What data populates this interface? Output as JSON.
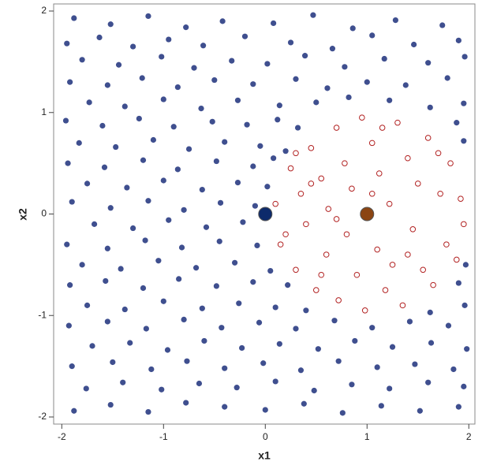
{
  "chart_data": {
    "type": "scatter",
    "x_label": "x1",
    "y_label": "x2",
    "xlim": [
      -2.08,
      2.06
    ],
    "ylim": [
      -2.07,
      2.07
    ],
    "xticks": [
      -2,
      -1,
      0,
      1,
      2
    ],
    "yticks": [
      -2,
      -1,
      0,
      1,
      2
    ],
    "series": [
      {
        "color": "#3f4f8f",
        "marker": "filled",
        "x": [
          -1.88,
          -1.52,
          -1.15,
          -0.78,
          -0.42,
          0.08,
          0.47,
          0.86,
          1.28,
          1.74,
          -1.95,
          -1.63,
          -1.3,
          -0.95,
          -0.61,
          -0.2,
          0.25,
          0.66,
          1.05,
          1.46,
          1.9,
          -1.8,
          -1.44,
          -1.02,
          -0.7,
          -0.33,
          0.02,
          0.39,
          0.78,
          1.17,
          1.6,
          1.96,
          -1.92,
          -1.55,
          -1.21,
          -0.86,
          -0.5,
          -0.12,
          0.3,
          0.61,
          1.0,
          1.38,
          1.79,
          -1.73,
          -1.38,
          -1.0,
          -0.63,
          -0.27,
          0.14,
          0.5,
          0.82,
          1.22,
          1.62,
          1.95,
          -1.96,
          -1.6,
          -1.24,
          -0.9,
          -0.52,
          -0.18,
          0.12,
          0.32,
          1.88,
          -1.83,
          -1.47,
          -1.1,
          -0.75,
          -0.4,
          -0.05,
          0.2,
          1.95,
          -1.94,
          -1.58,
          -1.2,
          -0.86,
          -0.48,
          -0.12,
          0.08,
          -1.75,
          -1.36,
          -1.0,
          -0.62,
          -0.27,
          0.02,
          -1.9,
          -1.52,
          -1.15,
          -0.8,
          -0.44,
          -0.1,
          -1.68,
          -1.3,
          -0.95,
          -0.58,
          -0.22,
          -1.95,
          -1.55,
          -1.18,
          -0.82,
          -0.45,
          -0.08,
          -1.8,
          -1.42,
          -1.05,
          -0.68,
          -0.3,
          0.05,
          1.97,
          -1.92,
          -1.57,
          -1.2,
          -0.85,
          -0.48,
          -0.12,
          0.22,
          1.9,
          -1.75,
          -1.38,
          -1.0,
          -0.62,
          -0.26,
          0.1,
          0.4,
          1.62,
          1.96,
          -1.93,
          -1.55,
          -1.17,
          -0.8,
          -0.43,
          -0.06,
          0.3,
          0.68,
          1.05,
          1.42,
          1.8,
          -1.7,
          -1.33,
          -0.96,
          -0.6,
          -0.23,
          0.14,
          0.52,
          0.88,
          1.25,
          1.63,
          1.98,
          -1.9,
          -1.5,
          -1.12,
          -0.77,
          -0.4,
          -0.02,
          0.35,
          0.72,
          1.1,
          1.47,
          1.85,
          -1.76,
          -1.4,
          -1.02,
          -0.65,
          -0.28,
          0.1,
          0.48,
          0.85,
          1.22,
          1.6,
          1.95,
          -1.88,
          -1.52,
          -1.15,
          -0.78,
          -0.4,
          0.0,
          0.38,
          0.76,
          1.14,
          1.52,
          1.9
        ],
        "y": [
          1.93,
          1.87,
          1.95,
          1.84,
          1.9,
          1.88,
          1.96,
          1.83,
          1.91,
          1.86,
          1.68,
          1.74,
          1.65,
          1.72,
          1.66,
          1.75,
          1.69,
          1.63,
          1.76,
          1.67,
          1.71,
          1.52,
          1.47,
          1.55,
          1.44,
          1.51,
          1.48,
          1.56,
          1.45,
          1.53,
          1.49,
          1.55,
          1.3,
          1.27,
          1.34,
          1.25,
          1.32,
          1.28,
          1.33,
          1.24,
          1.3,
          1.27,
          1.34,
          1.1,
          1.06,
          1.13,
          1.04,
          1.12,
          1.07,
          1.1,
          1.15,
          1.12,
          1.05,
          1.09,
          0.92,
          0.87,
          0.94,
          0.86,
          0.91,
          0.88,
          0.93,
          0.85,
          0.9,
          0.7,
          0.66,
          0.73,
          0.64,
          0.71,
          0.67,
          0.62,
          0.72,
          0.5,
          0.46,
          0.53,
          0.44,
          0.52,
          0.47,
          0.55,
          0.3,
          0.26,
          0.33,
          0.24,
          0.31,
          0.27,
          0.12,
          0.06,
          0.13,
          0.04,
          0.11,
          0.08,
          -0.1,
          -0.14,
          -0.06,
          -0.13,
          -0.08,
          -0.3,
          -0.34,
          -0.26,
          -0.33,
          -0.27,
          -0.31,
          -0.5,
          -0.54,
          -0.46,
          -0.53,
          -0.48,
          -0.56,
          -0.5,
          -0.7,
          -0.66,
          -0.73,
          -0.64,
          -0.71,
          -0.67,
          -0.7,
          -0.68,
          -0.9,
          -0.94,
          -0.86,
          -0.93,
          -0.88,
          -0.92,
          -0.95,
          -0.97,
          -0.9,
          -1.1,
          -1.06,
          -1.13,
          -1.04,
          -1.12,
          -1.07,
          -1.13,
          -1.05,
          -1.12,
          -1.06,
          -1.1,
          -1.3,
          -1.27,
          -1.34,
          -1.25,
          -1.32,
          -1.28,
          -1.33,
          -1.25,
          -1.31,
          -1.27,
          -1.33,
          -1.5,
          -1.46,
          -1.53,
          -1.45,
          -1.52,
          -1.47,
          -1.54,
          -1.45,
          -1.51,
          -1.48,
          -1.53,
          -1.72,
          -1.66,
          -1.73,
          -1.67,
          -1.71,
          -1.65,
          -1.74,
          -1.68,
          -1.72,
          -1.66,
          -1.7,
          -1.94,
          -1.88,
          -1.95,
          -1.86,
          -1.9,
          -1.93,
          -1.87,
          -1.96,
          -1.89,
          -1.94,
          -1.9
        ]
      },
      {
        "color": "#b22222",
        "marker": "open",
        "x": [
          0.1,
          0.15,
          0.25,
          0.3,
          0.35,
          0.4,
          0.45,
          0.5,
          0.55,
          0.6,
          0.62,
          0.7,
          0.72,
          0.78,
          0.8,
          0.85,
          0.9,
          0.95,
          0.98,
          1.05,
          1.1,
          1.12,
          1.18,
          1.22,
          1.3,
          1.35,
          1.4,
          1.45,
          1.5,
          1.55,
          1.6,
          1.65,
          1.72,
          1.78,
          1.82,
          1.88,
          1.92,
          1.95,
          0.3,
          0.55,
          1.25,
          1.05,
          0.7,
          1.7,
          0.2,
          0.45,
          1.4,
          1.15
        ],
        "y": [
          0.1,
          -0.3,
          0.45,
          -0.55,
          0.2,
          -0.1,
          0.65,
          -0.75,
          0.35,
          -0.4,
          0.05,
          0.85,
          -0.85,
          0.5,
          -0.2,
          0.25,
          -0.6,
          0.95,
          -0.95,
          0.7,
          -0.35,
          0.4,
          -0.75,
          0.1,
          0.9,
          -0.9,
          0.55,
          -0.15,
          0.3,
          -0.55,
          0.75,
          -0.7,
          0.2,
          -0.3,
          0.5,
          -0.45,
          0.15,
          -0.1,
          0.6,
          -0.6,
          -0.5,
          0.2,
          -0.05,
          0.6,
          -0.2,
          0.3,
          -0.4,
          0.85
        ]
      },
      {
        "color": "#0d2a6b",
        "marker": "centroid",
        "x": [
          0
        ],
        "y": [
          0
        ]
      },
      {
        "color": "#8b4513",
        "marker": "centroid",
        "x": [
          1
        ],
        "y": [
          0
        ]
      }
    ]
  }
}
